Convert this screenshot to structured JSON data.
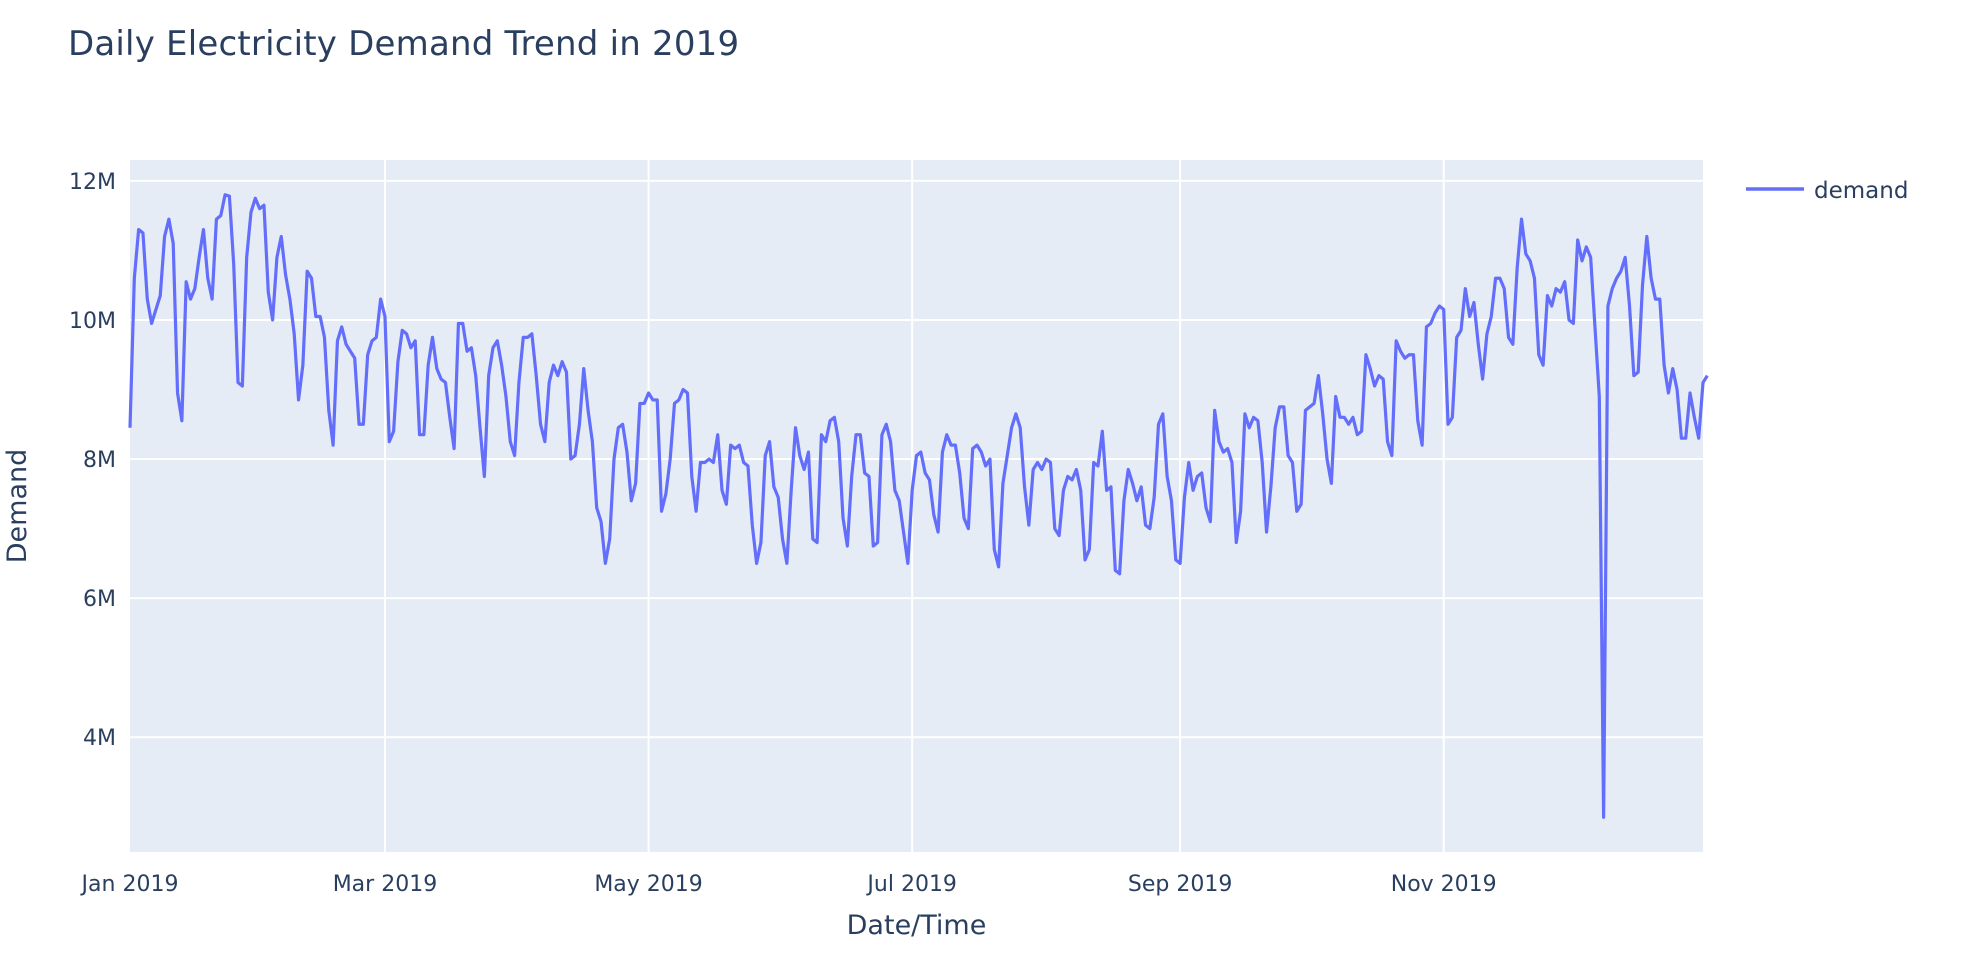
{
  "chart_data": {
    "type": "line",
    "title": "Daily Electricity Demand Trend in 2019",
    "xlabel": "Date/Time",
    "ylabel": "Demand",
    "x_ticks": [
      "Jan 2019",
      "Mar 2019",
      "May 2019",
      "Jul 2019",
      "Sep 2019",
      "Nov 2019"
    ],
    "y_ticks": [
      "4M",
      "6M",
      "8M",
      "10M",
      "12M"
    ],
    "xlim": [
      "2019-01-01",
      "2019-12-31"
    ],
    "ylim": [
      2350000,
      12300000
    ],
    "grid": true,
    "legend_position": "top-right",
    "colors": {
      "line": "#636efa",
      "plot_bg": "#e5ecf6",
      "grid": "#ffffff",
      "text": "#2a3f5f"
    },
    "series": [
      {
        "name": "demand",
        "x_start": "2019-01-01",
        "x_step": "1 day",
        "values": [
          8450000,
          10600000,
          11300000,
          11250000,
          10300000,
          9950000,
          10150000,
          10350000,
          11200000,
          11450000,
          11100000,
          8950000,
          8550000,
          10550000,
          10300000,
          10450000,
          10900000,
          11300000,
          10600000,
          10300000,
          11450000,
          11500000,
          11800000,
          11780000,
          10800000,
          9100000,
          9050000,
          10900000,
          11550000,
          11750000,
          11600000,
          11650000,
          10400000,
          10000000,
          10900000,
          11200000,
          10650000,
          10300000,
          9800000,
          8850000,
          9350000,
          10700000,
          10600000,
          10050000,
          10050000,
          9750000,
          8700000,
          8200000,
          9700000,
          9900000,
          9650000,
          9550000,
          9450000,
          8500000,
          8500000,
          9500000,
          9700000,
          9750000,
          10300000,
          10050000,
          8250000,
          8400000,
          9400000,
          9850000,
          9800000,
          9600000,
          9700000,
          8350000,
          8350000,
          9350000,
          9750000,
          9300000,
          9150000,
          9100000,
          8600000,
          8150000,
          9950000,
          9950000,
          9550000,
          9600000,
          9200000,
          8450000,
          7750000,
          9200000,
          9600000,
          9700000,
          9350000,
          8900000,
          8250000,
          8050000,
          9100000,
          9750000,
          9750000,
          9800000,
          9200000,
          8500000,
          8250000,
          9100000,
          9350000,
          9200000,
          9400000,
          9250000,
          8000000,
          8050000,
          8500000,
          9300000,
          8700000,
          8250000,
          7300000,
          7100000,
          6500000,
          6850000,
          8000000,
          8450000,
          8500000,
          8100000,
          7400000,
          7650000,
          8800000,
          8800000,
          8950000,
          8850000,
          8850000,
          7250000,
          7500000,
          8000000,
          8800000,
          8850000,
          9000000,
          8950000,
          7750000,
          7250000,
          7950000,
          7950000,
          8000000,
          7950000,
          8350000,
          7550000,
          7350000,
          8200000,
          8150000,
          8200000,
          7950000,
          7900000,
          7050000,
          6500000,
          6800000,
          8050000,
          8250000,
          7600000,
          7450000,
          6850000,
          6500000,
          7550000,
          8450000,
          8050000,
          7850000,
          8100000,
          6850000,
          6800000,
          8350000,
          8250000,
          8550000,
          8600000,
          8250000,
          7150000,
          6750000,
          7750000,
          8350000,
          8350000,
          7800000,
          7750000,
          6750000,
          6800000,
          8350000,
          8500000,
          8250000,
          7550000,
          7400000,
          6950000,
          6500000,
          7550000,
          8050000,
          8100000,
          7800000,
          7700000,
          7200000,
          6950000,
          8100000,
          8350000,
          8200000,
          8200000,
          7800000,
          7150000,
          7000000,
          8150000,
          8200000,
          8100000,
          7900000,
          8000000,
          6700000,
          6450000,
          7650000,
          8050000,
          8450000,
          8650000,
          8450000,
          7600000,
          7050000,
          7850000,
          7950000,
          7850000,
          8000000,
          7950000,
          7000000,
          6900000,
          7550000,
          7750000,
          7700000,
          7850000,
          7550000,
          6550000,
          6700000,
          7950000,
          7900000,
          8400000,
          7550000,
          7600000,
          6400000,
          6350000,
          7400000,
          7850000,
          7650000,
          7400000,
          7600000,
          7050000,
          7000000,
          7450000,
          8500000,
          8650000,
          7750000,
          7400000,
          6550000,
          6500000,
          7450000,
          7950000,
          7550000,
          7750000,
          7800000,
          7300000,
          7100000,
          8700000,
          8250000,
          8100000,
          8150000,
          7950000,
          6800000,
          7250000,
          8650000,
          8450000,
          8600000,
          8550000,
          7950000,
          6950000,
          7600000,
          8450000,
          8750000,
          8750000,
          8050000,
          7950000,
          7250000,
          7350000,
          8700000,
          8750000,
          8800000,
          9200000,
          8650000,
          8000000,
          7650000,
          8900000,
          8600000,
          8600000,
          8500000,
          8600000,
          8350000,
          8400000,
          9500000,
          9300000,
          9050000,
          9200000,
          9150000,
          8250000,
          8050000,
          9700000,
          9550000,
          9450000,
          9500000,
          9500000,
          8550000,
          8200000,
          9900000,
          9950000,
          10100000,
          10200000,
          10150000,
          8500000,
          8600000,
          9750000,
          9850000,
          10450000,
          10050000,
          10250000,
          9650000,
          9150000,
          9800000,
          10050000,
          10600000,
          10600000,
          10450000,
          9750000,
          9650000,
          10750000,
          11450000,
          10950000,
          10850000,
          10600000,
          9500000,
          9350000,
          10350000,
          10200000,
          10450000,
          10400000,
          10550000,
          10000000,
          9950000,
          11150000,
          10850000,
          11050000,
          10900000,
          9900000,
          8900000,
          2850000,
          10200000,
          10450000,
          10600000,
          10700000,
          10900000,
          10200000,
          9200000,
          9250000,
          10500000,
          11200000,
          10600000,
          10300000,
          10300000,
          9350000,
          8950000,
          9300000,
          9000000,
          8300000,
          8300000,
          8950000,
          8600000,
          8300000,
          9100000,
          9200000
        ]
      }
    ]
  }
}
